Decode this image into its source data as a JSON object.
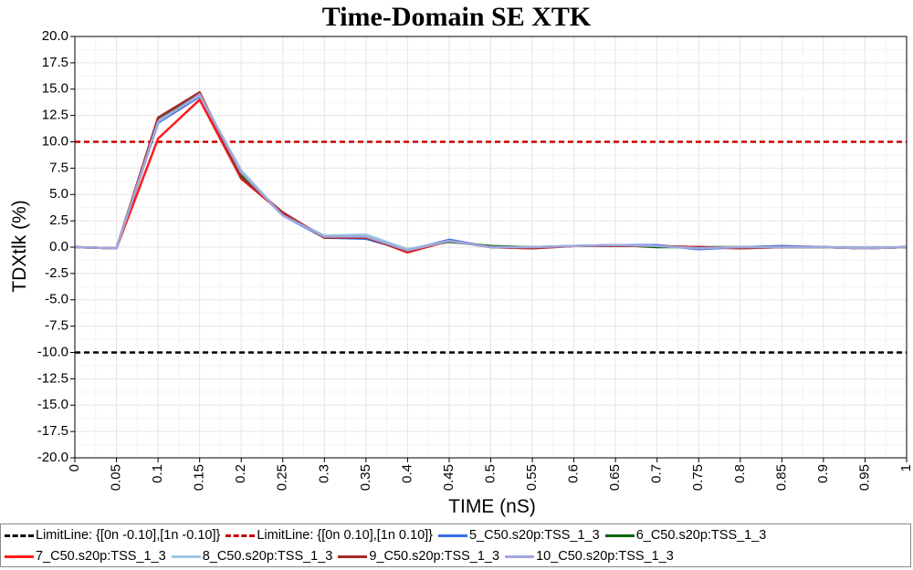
{
  "chart_data": {
    "type": "line",
    "title": "Time-Domain SE XTK",
    "xlabel": "TIME (nS)",
    "ylabel": "TDXtlk (%)",
    "xlim": [
      0,
      1
    ],
    "ylim": [
      -20,
      20
    ],
    "x_ticks": [
      "0",
      "0.05",
      "0.1",
      "0.15",
      "0.2",
      "0.25",
      "0.3",
      "0.35",
      "0.4",
      "0.45",
      "0.5",
      "0.55",
      "0.6",
      "0.65",
      "0.7",
      "0.75",
      "0.8",
      "0.85",
      "0.9",
      "0.95",
      "1"
    ],
    "y_ticks": [
      "20.0",
      "17.5",
      "15.0",
      "12.5",
      "10.0",
      "7.5",
      "5.0",
      "2.5",
      "0.0",
      "-2.5",
      "-5.0",
      "-7.5",
      "-10.0",
      "-12.5",
      "-15.0",
      "-17.5",
      "-20.0"
    ],
    "grid": true,
    "legend_position": "bottom",
    "x": [
      0,
      0.05,
      0.1,
      0.15,
      0.2,
      0.25,
      0.3,
      0.35,
      0.4,
      0.45,
      0.5,
      0.55,
      0.6,
      0.65,
      0.7,
      0.75,
      0.8,
      0.85,
      0.9,
      0.95,
      1
    ],
    "limit_lines": [
      {
        "name": "LimitLine: {[0n -0.10],[1n -0.10]}",
        "color": "#000000",
        "value": -10
      },
      {
        "name": "LimitLine: {[0n 0.10],[1n 0.10]}",
        "color": "#cc0000",
        "value": 10
      }
    ],
    "series": [
      {
        "name": "5_C50.s20p:TSS_1_3",
        "color": "#3a6ee8",
        "values": [
          0,
          -0.1,
          11.8,
          14.3,
          7.0,
          3.0,
          0.9,
          0.8,
          -0.3,
          0.7,
          0.0,
          0.0,
          0.1,
          0.2,
          0.2,
          -0.2,
          0.0,
          0.1,
          0.0,
          -0.1,
          0.0
        ]
      },
      {
        "name": "6_C50.s20p:TSS_1_3",
        "color": "#006400",
        "values": [
          0,
          -0.1,
          12.1,
          14.6,
          6.9,
          3.1,
          1.0,
          1.1,
          -0.2,
          0.5,
          0.1,
          0.0,
          0.1,
          0.2,
          0.0,
          0.0,
          0.0,
          0.0,
          0.0,
          -0.1,
          0.0
        ]
      },
      {
        "name": "7_C50.s20p:TSS_1_3",
        "color": "#ff1a1a",
        "values": [
          0,
          -0.1,
          10.3,
          14.0,
          6.5,
          3.2,
          0.9,
          1.0,
          -0.5,
          0.6,
          0.0,
          -0.1,
          0.1,
          0.1,
          0.1,
          0.0,
          -0.1,
          0.0,
          0.0,
          -0.1,
          0.0
        ]
      },
      {
        "name": "8_C50.s20p:TSS_1_3",
        "color": "#9ecae1",
        "values": [
          0,
          -0.1,
          12.0,
          14.4,
          7.3,
          3.0,
          1.1,
          1.2,
          -0.2,
          0.6,
          0.0,
          0.0,
          0.1,
          0.2,
          0.1,
          -0.1,
          0.0,
          0.0,
          0.0,
          0.0,
          0.0
        ]
      },
      {
        "name": "9_C50.s20p:TSS_1_3",
        "color": "#a52a2a",
        "values": [
          0,
          -0.1,
          12.3,
          14.7,
          6.6,
          3.3,
          0.9,
          0.9,
          -0.4,
          0.6,
          0.0,
          -0.1,
          0.1,
          0.1,
          0.1,
          0.0,
          -0.1,
          0.0,
          0.0,
          -0.1,
          0.0
        ]
      },
      {
        "name": "10_C50.s20p:TSS_1_3",
        "color": "#a0a8dc",
        "values": [
          0,
          -0.1,
          11.9,
          14.5,
          7.1,
          3.0,
          1.0,
          1.0,
          -0.3,
          0.6,
          0.0,
          0.0,
          0.1,
          0.2,
          0.1,
          -0.1,
          0.0,
          0.0,
          0.0,
          -0.1,
          0.0
        ]
      }
    ]
  }
}
